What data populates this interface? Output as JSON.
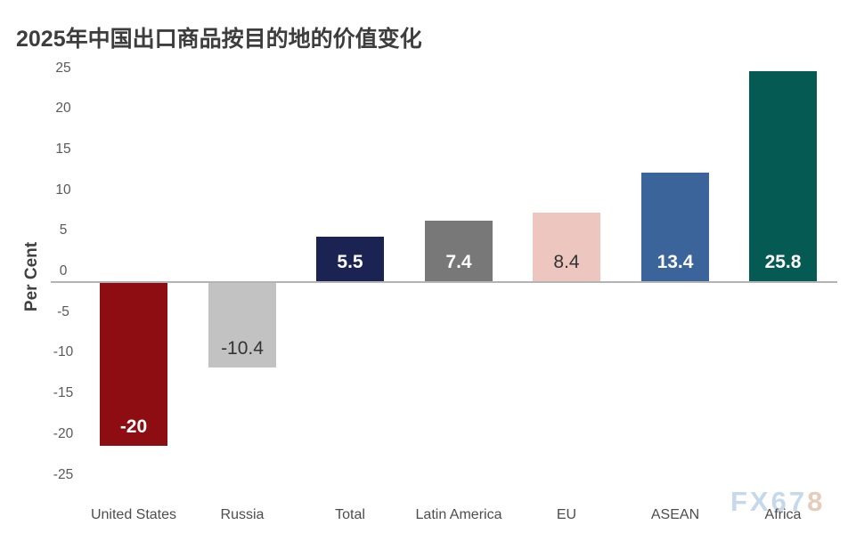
{
  "title": "2025年中国出口商品按目的地的价值变化",
  "watermark": {
    "part1": "FX67",
    "part2": "8",
    "color1": "#c6d9eb",
    "color2": "#e4cdbb"
  },
  "chart_data": {
    "type": "bar",
    "title": "2025年中国出口商品按目的地的价值变化",
    "xlabel": "",
    "ylabel": "Per Cent",
    "categories": [
      "United States",
      "Russia",
      "Total",
      "Latin America",
      "EU",
      "ASEAN",
      "Africa"
    ],
    "values": [
      -20,
      -10.4,
      5.5,
      7.4,
      8.4,
      13.4,
      25.8
    ],
    "value_labels": [
      "-20",
      "-10.4",
      "5.5",
      "7.4",
      "8.4",
      "13.4",
      "25.8"
    ],
    "bar_colors": [
      "#8d0d12",
      "#c2c2c2",
      "#1b2352",
      "#787878",
      "#eec6c0",
      "#3a649a",
      "#065a54"
    ],
    "value_label_colors": [
      "#ffffff",
      "#333333",
      "#ffffff",
      "#ffffff",
      "#333333",
      "#ffffff",
      "#ffffff"
    ],
    "value_label_weights": [
      "700",
      "400",
      "700",
      "700",
      "400",
      "700",
      "700"
    ],
    "ylim": [
      -25,
      25
    ],
    "yticks": [
      25,
      20,
      15,
      10,
      5,
      0,
      -5,
      -10,
      -15,
      -20,
      -25
    ],
    "grid": false,
    "legend": null,
    "axis_line_color": "#b3b3b3",
    "background_color": "#ffffff",
    "title_color": "#3d3d3d",
    "tick_label_color": "#595959"
  }
}
